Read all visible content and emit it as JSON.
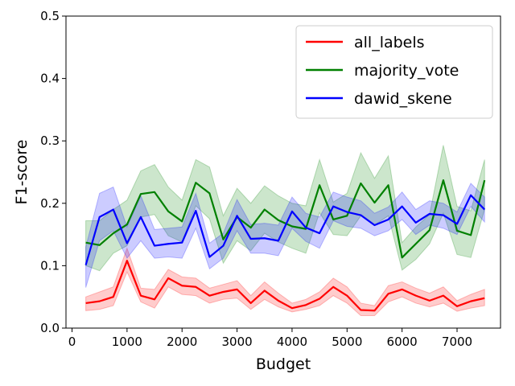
{
  "chart_data": {
    "type": "line",
    "xlabel": "Budget",
    "ylabel": "F1-score",
    "xlim": [
      -110,
      7790
    ],
    "ylim": [
      0.0,
      0.5
    ],
    "xticks": [
      0,
      1000,
      2000,
      3000,
      4000,
      5000,
      6000,
      7000
    ],
    "xtick_labels": [
      "0",
      "1000",
      "2000",
      "3000",
      "4000",
      "5000",
      "6000",
      "7000"
    ],
    "yticks": [
      0.0,
      0.1,
      0.2,
      0.3,
      0.4,
      0.5
    ],
    "ytick_labels": [
      "0.0",
      "0.1",
      "0.2",
      "0.3",
      "0.4",
      "0.5"
    ],
    "grid": false,
    "legend_position": "top-right",
    "x": [
      250,
      500,
      750,
      1000,
      1250,
      1500,
      1750,
      2000,
      2250,
      2500,
      2750,
      3000,
      3250,
      3500,
      3750,
      4000,
      4250,
      4500,
      4750,
      5000,
      5250,
      5500,
      5750,
      6000,
      6250,
      6500,
      6750,
      7000,
      7250,
      7500
    ],
    "series": [
      {
        "name": "all_labels",
        "color": "#ff0000",
        "values": [
          0.04,
          0.043,
          0.05,
          0.108,
          0.052,
          0.046,
          0.08,
          0.068,
          0.066,
          0.052,
          0.058,
          0.062,
          0.04,
          0.06,
          0.044,
          0.032,
          0.037,
          0.047,
          0.066,
          0.052,
          0.029,
          0.028,
          0.055,
          0.062,
          0.052,
          0.044,
          0.052,
          0.035,
          0.043,
          0.048
        ],
        "lower": [
          0.028,
          0.03,
          0.036,
          0.09,
          0.042,
          0.032,
          0.066,
          0.054,
          0.052,
          0.04,
          0.046,
          0.048,
          0.03,
          0.046,
          0.034,
          0.026,
          0.03,
          0.036,
          0.052,
          0.04,
          0.02,
          0.02,
          0.042,
          0.05,
          0.04,
          0.034,
          0.04,
          0.027,
          0.032,
          0.036
        ],
        "upper": [
          0.05,
          0.058,
          0.066,
          0.128,
          0.064,
          0.062,
          0.094,
          0.082,
          0.08,
          0.064,
          0.07,
          0.076,
          0.052,
          0.074,
          0.056,
          0.04,
          0.046,
          0.058,
          0.08,
          0.066,
          0.04,
          0.036,
          0.068,
          0.074,
          0.064,
          0.056,
          0.066,
          0.044,
          0.054,
          0.062
        ]
      },
      {
        "name": "majority_vote",
        "color": "#008000",
        "values": [
          0.137,
          0.133,
          0.152,
          0.166,
          0.215,
          0.218,
          0.187,
          0.171,
          0.233,
          0.216,
          0.142,
          0.178,
          0.161,
          0.19,
          0.173,
          0.163,
          0.159,
          0.229,
          0.174,
          0.18,
          0.232,
          0.201,
          0.229,
          0.113,
          0.135,
          0.157,
          0.237,
          0.156,
          0.149,
          0.237
        ],
        "lower": [
          0.1,
          0.092,
          0.12,
          0.132,
          0.178,
          0.182,
          0.148,
          0.138,
          0.196,
          0.175,
          0.104,
          0.14,
          0.124,
          0.152,
          0.138,
          0.128,
          0.12,
          0.185,
          0.15,
          0.148,
          0.18,
          0.165,
          0.18,
          0.093,
          0.11,
          0.135,
          0.184,
          0.118,
          0.113,
          0.19
        ],
        "upper": [
          0.172,
          0.172,
          0.19,
          0.205,
          0.252,
          0.262,
          0.226,
          0.205,
          0.27,
          0.258,
          0.18,
          0.224,
          0.2,
          0.228,
          0.212,
          0.2,
          0.196,
          0.27,
          0.202,
          0.216,
          0.281,
          0.24,
          0.276,
          0.137,
          0.162,
          0.182,
          0.293,
          0.195,
          0.188,
          0.27
        ]
      },
      {
        "name": "dawid_skene",
        "color": "#0000ff",
        "values": [
          0.101,
          0.178,
          0.19,
          0.136,
          0.178,
          0.132,
          0.135,
          0.137,
          0.188,
          0.114,
          0.132,
          0.18,
          0.143,
          0.144,
          0.14,
          0.187,
          0.161,
          0.152,
          0.195,
          0.186,
          0.181,
          0.165,
          0.174,
          0.195,
          0.169,
          0.183,
          0.181,
          0.167,
          0.213,
          0.19
        ],
        "lower": [
          0.065,
          0.14,
          0.156,
          0.112,
          0.14,
          0.112,
          0.114,
          0.112,
          0.16,
          0.095,
          0.112,
          0.156,
          0.12,
          0.12,
          0.116,
          0.16,
          0.139,
          0.128,
          0.172,
          0.163,
          0.16,
          0.148,
          0.156,
          0.174,
          0.15,
          0.165,
          0.16,
          0.15,
          0.195,
          0.17
        ],
        "upper": [
          0.13,
          0.216,
          0.226,
          0.162,
          0.212,
          0.158,
          0.16,
          0.162,
          0.216,
          0.136,
          0.152,
          0.206,
          0.166,
          0.168,
          0.165,
          0.21,
          0.184,
          0.178,
          0.218,
          0.21,
          0.204,
          0.184,
          0.194,
          0.218,
          0.19,
          0.204,
          0.2,
          0.186,
          0.232,
          0.21
        ]
      }
    ]
  }
}
